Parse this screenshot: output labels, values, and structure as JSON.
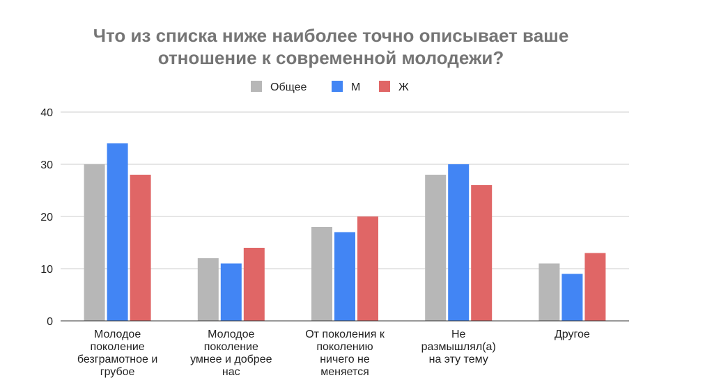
{
  "chart_data": {
    "type": "bar",
    "title": [
      "Что из списка ниже наиболее точно описывает ваше",
      "отношение к современной молодежи?"
    ],
    "categories": [
      [
        "Молодое",
        "поколение",
        "безграмотное и",
        "грубое"
      ],
      [
        "Молодое",
        "поколение",
        "умнее и добрее",
        "нас"
      ],
      [
        "От поколения к",
        "поколению",
        "ничего не",
        "меняется"
      ],
      [
        "Не",
        "размышлял(а)",
        "на эту тему"
      ],
      [
        "Другое"
      ]
    ],
    "series": [
      {
        "name": "Общее",
        "color": "#b7b7b7",
        "values": [
          30,
          12,
          18,
          28,
          11
        ]
      },
      {
        "name": "М",
        "color": "#4285f4",
        "values": [
          34,
          11,
          17,
          30,
          9
        ]
      },
      {
        "name": "Ж",
        "color": "#e06666",
        "values": [
          28,
          14,
          20,
          26,
          13
        ]
      }
    ],
    "yticks": [
      0,
      10,
      20,
      30,
      40
    ],
    "ylim": [
      0,
      40
    ],
    "xlabel": "",
    "ylabel": "",
    "grid": true,
    "legend": "top"
  }
}
